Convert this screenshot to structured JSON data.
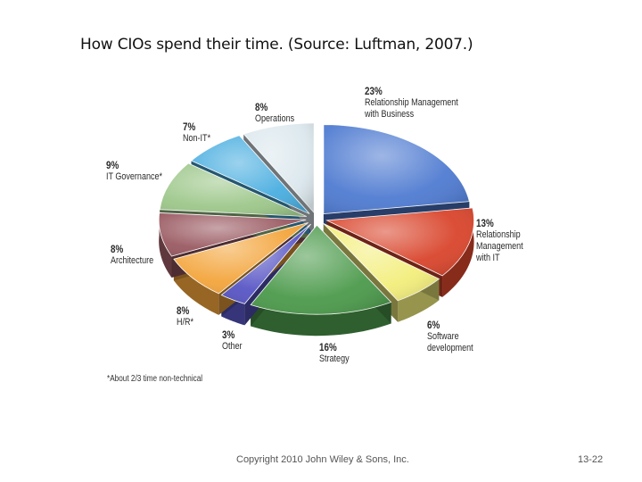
{
  "slide": {
    "title": "How CIOs spend their time. (Source: Luftman, 2007.)",
    "footnote": "*About 2/3 time non-technical",
    "copyright": "Copyright 2010 John Wiley & Sons, Inc.",
    "page": "13-22"
  },
  "chart_data": {
    "type": "pie",
    "title": "How CIOs spend their time. (Source: Luftman, 2007.)",
    "unit": "%",
    "slices": [
      {
        "label": "Relationship Management with Business",
        "pct_text": "23%",
        "value": 23,
        "color": "#4f7bd1"
      },
      {
        "label": "Relationship Management with IT",
        "pct_text": "13%",
        "value": 13,
        "color": "#d9452c"
      },
      {
        "label": "Software development",
        "pct_text": "6%",
        "value": 6,
        "color": "#f3ee7c"
      },
      {
        "label": "Strategy",
        "pct_text": "16%",
        "value": 16,
        "color": "#4c9a4c"
      },
      {
        "label": "Other",
        "pct_text": "3%",
        "value": 3,
        "color": "#5856c5"
      },
      {
        "label": "H/R*",
        "pct_text": "8%",
        "value": 8,
        "color": "#f3a53c"
      },
      {
        "label": "Architecture",
        "pct_text": "8%",
        "value": 8,
        "color": "#9a5a62"
      },
      {
        "label": "IT Governance*",
        "pct_text": "9%",
        "value": 9,
        "color": "#9dc78a"
      },
      {
        "label": "Non-IT*",
        "pct_text": "7%",
        "value": 7,
        "color": "#4aaee0"
      },
      {
        "label": "Operations",
        "pct_text": "8%",
        "value": 8,
        "color": "#dce8ee"
      }
    ]
  }
}
